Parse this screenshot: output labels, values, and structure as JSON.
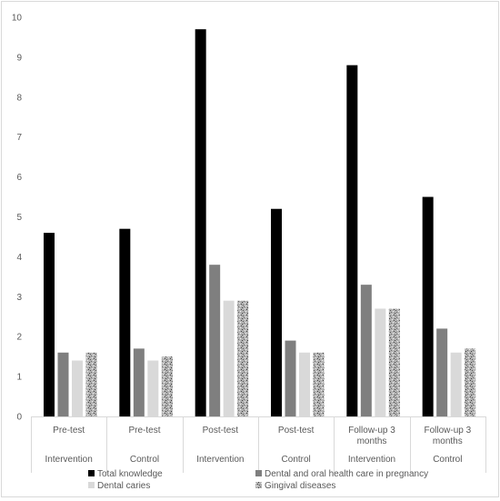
{
  "chart_data": {
    "type": "bar",
    "title": "",
    "xlabel": "",
    "ylabel": "",
    "ylim": [
      0,
      10
    ],
    "yticks": [
      "0",
      "1",
      "2",
      "3",
      "4",
      "5",
      "6",
      "7",
      "8",
      "9",
      "10"
    ],
    "grid": false,
    "legend_position": "bottom",
    "category_labels": [
      [
        "Pre-test"
      ],
      [
        "Pre-test"
      ],
      [
        "Post-test"
      ],
      [
        "Post-test"
      ],
      [
        "Follow-up 3",
        "months"
      ],
      [
        "Follow-up 3",
        "months"
      ]
    ],
    "groups": [
      "Intervention",
      "Control",
      "Intervention",
      "Control",
      "Intervention",
      "Control"
    ],
    "series": [
      {
        "name": "Total knowledge",
        "color": "#000000",
        "pattern": "solid",
        "values": [
          4.6,
          4.7,
          9.7,
          5.2,
          8.8,
          5.5
        ]
      },
      {
        "name": "Dental and oral health care in pregnancy",
        "color": "#7f7f7f",
        "pattern": "solid",
        "values": [
          1.6,
          1.7,
          3.8,
          1.9,
          3.3,
          2.2
        ]
      },
      {
        "name": "Dental caries",
        "color": "#d9d9d9",
        "pattern": "solid",
        "values": [
          1.4,
          1.4,
          2.9,
          1.6,
          2.7,
          1.6
        ]
      },
      {
        "name": "Gingival diseases",
        "color": "#a6a6a6",
        "pattern": "speckled",
        "values": [
          1.6,
          1.5,
          2.9,
          1.6,
          2.7,
          1.7
        ]
      }
    ]
  }
}
